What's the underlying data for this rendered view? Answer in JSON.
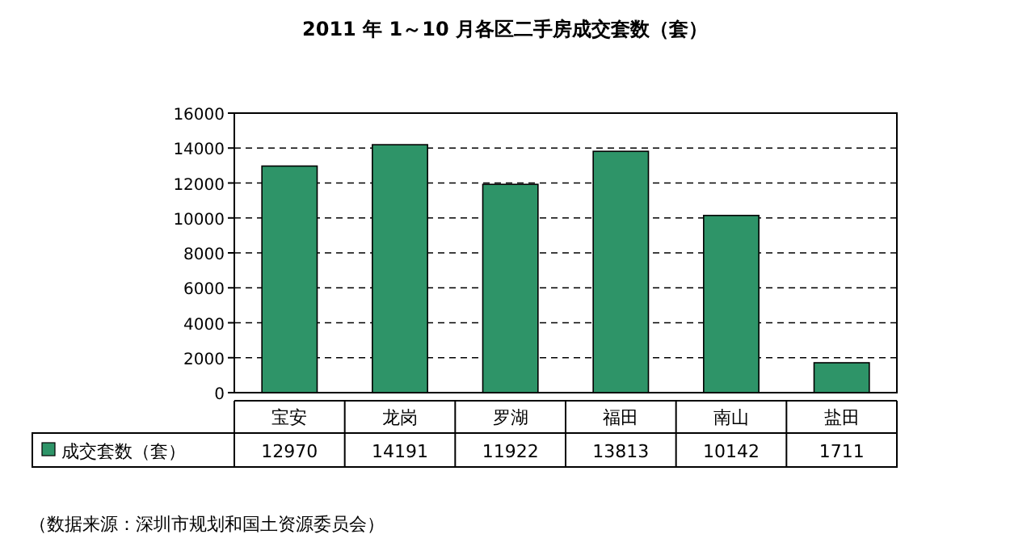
{
  "chart_data": {
    "type": "bar",
    "title": "2011 年 1～10 月各区二手房成交套数（套）",
    "categories": [
      "宝安",
      "龙岗",
      "罗湖",
      "福田",
      "南山",
      "盐田"
    ],
    "series": [
      {
        "name": "成交套数（套）",
        "color": "#2e9468",
        "values": [
          12970,
          14191,
          11922,
          13813,
          10142,
          1711
        ]
      }
    ],
    "ylim": [
      0,
      16000
    ],
    "yticks": [
      0,
      2000,
      4000,
      6000,
      8000,
      10000,
      12000,
      14000,
      16000
    ],
    "grid": "y",
    "legend": "bottom left",
    "data_labels": true,
    "annotations": [
      "（数据来源：深圳市规划和国土资源委员会）"
    ]
  }
}
